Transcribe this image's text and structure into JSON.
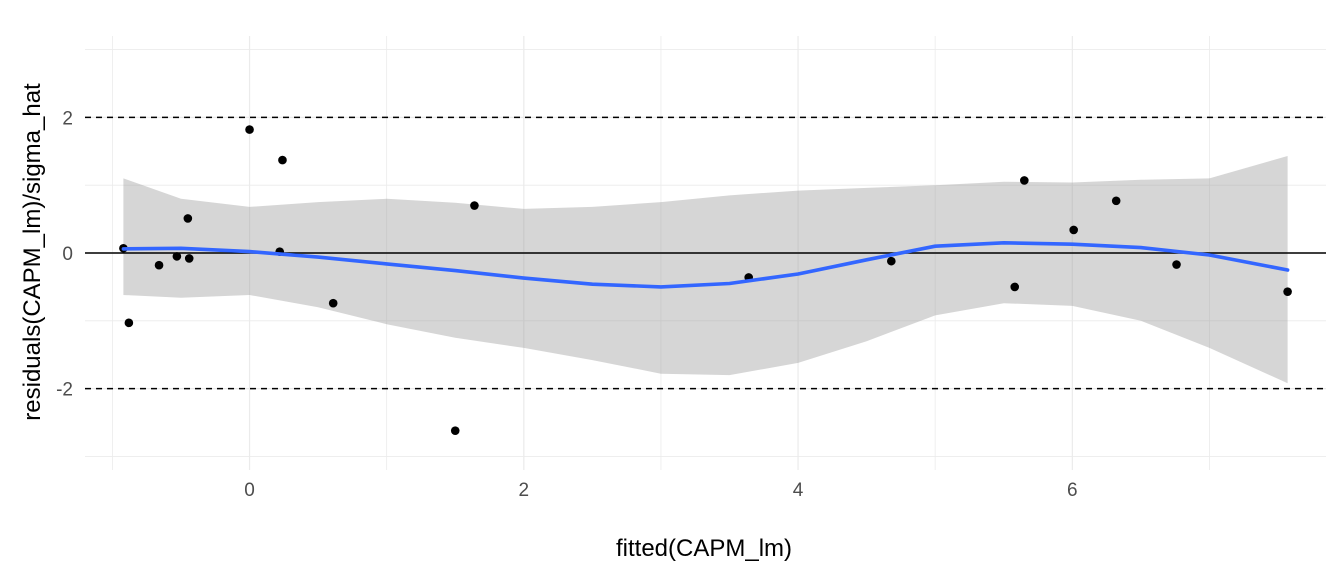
{
  "chart_data": {
    "type": "scatter",
    "title": "",
    "xlabel": "fitted(CAPM_lm)",
    "ylabel": "residuals(CAPM_lm)/sigma_hat",
    "xlim": [
      -1.2,
      7.85
    ],
    "ylim": [
      -3.2,
      3.2
    ],
    "x_ticks": [
      0,
      2,
      4,
      6
    ],
    "x_tick_labels": [
      "0",
      "2",
      "4",
      "6"
    ],
    "y_ticks": [
      -2,
      0,
      2
    ],
    "y_tick_labels": [
      "-2",
      "0",
      "2"
    ],
    "grid": true,
    "legend": "none",
    "reference_lines": [
      {
        "y": 2,
        "style": "dashed"
      },
      {
        "y": 0,
        "style": "solid"
      },
      {
        "y": -2,
        "style": "dashed"
      }
    ],
    "points": {
      "x": [
        -0.92,
        -0.88,
        -0.66,
        -0.53,
        -0.45,
        -0.44,
        0.0,
        0.22,
        0.24,
        0.61,
        1.5,
        1.64,
        3.64,
        4.68,
        5.58,
        5.65,
        6.01,
        6.32,
        6.76,
        7.57
      ],
      "y": [
        0.07,
        -1.03,
        -0.18,
        -0.05,
        0.51,
        -0.08,
        1.82,
        0.02,
        1.37,
        -0.74,
        -2.62,
        0.7,
        -0.36,
        -0.12,
        -0.5,
        1.07,
        0.34,
        0.77,
        -0.17,
        -0.57
      ]
    },
    "smooth": {
      "method": "loess",
      "x": [
        -0.92,
        -0.5,
        0.0,
        0.5,
        1.0,
        1.5,
        2.0,
        2.5,
        3.0,
        3.5,
        4.0,
        4.5,
        5.0,
        5.5,
        6.0,
        6.5,
        7.0,
        7.57
      ],
      "y": [
        0.06,
        0.07,
        0.02,
        -0.06,
        -0.16,
        -0.26,
        -0.37,
        -0.46,
        -0.5,
        -0.45,
        -0.31,
        -0.1,
        0.1,
        0.15,
        0.13,
        0.08,
        -0.03,
        -0.25
      ],
      "lower": [
        -0.62,
        -0.66,
        -0.62,
        -0.8,
        -1.05,
        -1.25,
        -1.4,
        -1.58,
        -1.78,
        -1.8,
        -1.62,
        -1.3,
        -0.92,
        -0.74,
        -0.78,
        -1.0,
        -1.4,
        -1.92
      ],
      "upper": [
        1.1,
        0.8,
        0.68,
        0.75,
        0.8,
        0.74,
        0.65,
        0.68,
        0.75,
        0.85,
        0.92,
        0.96,
        1.0,
        1.05,
        1.04,
        1.08,
        1.1,
        1.43
      ]
    },
    "colors": {
      "background": "#ffffff",
      "grid_major": "#ebebeb",
      "grid_minor": "#f5f5f5",
      "points": "#000000",
      "smooth_line": "#3366ff",
      "ribbon": "#999999",
      "ref_line": "#000000"
    }
  }
}
